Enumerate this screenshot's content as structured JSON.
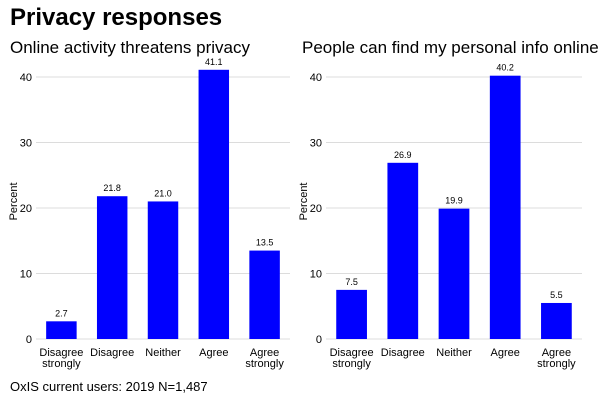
{
  "title": "Privacy responses",
  "caption": "OxIS current users: 2019 N=1,487",
  "chart_data": [
    {
      "type": "bar",
      "title": "Online activity threatens privacy",
      "ylabel": "Percent",
      "xlabel": "",
      "ylim": [
        0,
        42
      ],
      "yticks": [
        0,
        10,
        20,
        30,
        40
      ],
      "grid": true,
      "color": "#0000ff",
      "categories": [
        [
          "Disagree",
          "strongly"
        ],
        [
          "Disagree"
        ],
        [
          "Neither"
        ],
        [
          "Agree"
        ],
        [
          "Agree",
          "strongly"
        ]
      ],
      "values": [
        2.7,
        21.8,
        21.0,
        41.1,
        13.5
      ],
      "data_labels": [
        "2.7",
        "21.8",
        "21.0",
        "41.1",
        "13.5"
      ]
    },
    {
      "type": "bar",
      "title": "People can find my personal info online",
      "ylabel": "Percent",
      "xlabel": "",
      "ylim": [
        0,
        42
      ],
      "yticks": [
        0,
        10,
        20,
        30,
        40
      ],
      "grid": true,
      "color": "#0000ff",
      "categories": [
        [
          "Disagree",
          "strongly"
        ],
        [
          "Disagree"
        ],
        [
          "Neither"
        ],
        [
          "Agree"
        ],
        [
          "Agree",
          "strongly"
        ]
      ],
      "values": [
        7.5,
        26.9,
        19.9,
        40.2,
        5.5
      ],
      "data_labels": [
        "7.5",
        "26.9",
        "19.9",
        "40.2",
        "5.5"
      ]
    }
  ]
}
